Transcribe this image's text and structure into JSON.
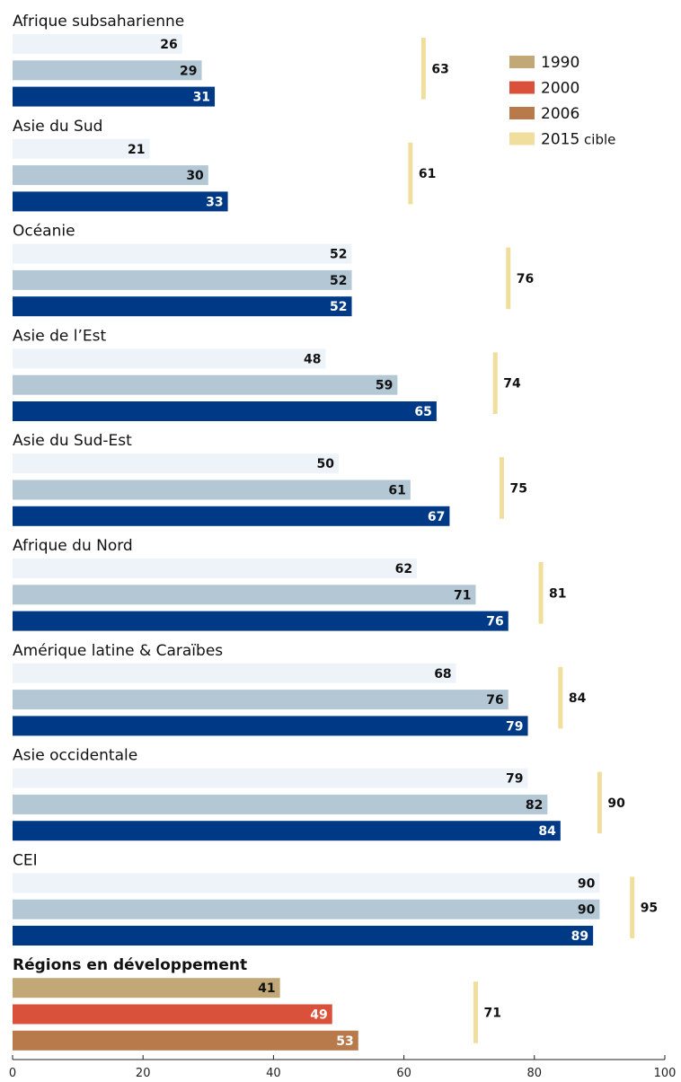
{
  "chart_data": {
    "type": "bar",
    "orientation": "horizontal",
    "title": "",
    "xlim": [
      0,
      100
    ],
    "x_ticks": [
      "0",
      "20",
      "40",
      "60",
      "80",
      "100"
    ],
    "legend": {
      "placement": "top-right",
      "entries": [
        {
          "label": "1990",
          "color": "#c3a877"
        },
        {
          "label": "2000",
          "color": "#d9503b"
        },
        {
          "label": "2006",
          "color": "#b8794b"
        },
        {
          "label": "2015",
          "suffix": "cible",
          "color": "#f0de9c"
        }
      ]
    },
    "series_colors_regions": [
      "#edf3f9",
      "#b3c7d5",
      "#003a87"
    ],
    "series_colors_developing": [
      "#c3a877",
      "#d9503b",
      "#b8794b"
    ],
    "target_color": "#f0de9c",
    "groups": [
      {
        "name": "Afrique subsaharienne",
        "bold": false,
        "values": [
          26,
          29,
          31
        ],
        "target": 63
      },
      {
        "name": "Asie du Sud",
        "bold": false,
        "values": [
          21,
          30,
          33
        ],
        "target": 61
      },
      {
        "name": "Océanie",
        "bold": false,
        "values": [
          52,
          52,
          52
        ],
        "target": 76
      },
      {
        "name": "Asie de l’Est",
        "bold": false,
        "values": [
          48,
          59,
          65
        ],
        "target": 74
      },
      {
        "name": "Asie du Sud-Est",
        "bold": false,
        "values": [
          50,
          61,
          67
        ],
        "target": 75
      },
      {
        "name": "Afrique du Nord",
        "bold": false,
        "values": [
          62,
          71,
          76
        ],
        "target": 81
      },
      {
        "name": "Amérique latine & Caraïbes",
        "bold": false,
        "values": [
          68,
          76,
          79
        ],
        "target": 84
      },
      {
        "name": "Asie occidentale",
        "bold": false,
        "values": [
          79,
          82,
          84
        ],
        "target": 90
      },
      {
        "name": "CEI",
        "bold": false,
        "values": [
          90,
          90,
          89
        ],
        "target": 95
      },
      {
        "name": "Régions en développement",
        "bold": true,
        "values": [
          41,
          49,
          53
        ],
        "target": 71
      }
    ]
  }
}
